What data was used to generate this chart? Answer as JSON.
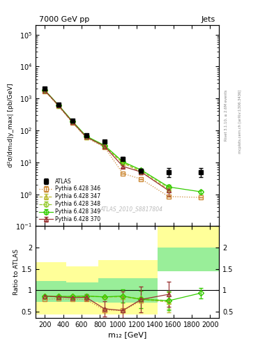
{
  "title_left": "7000 GeV pp",
  "title_right": "Jets",
  "watermark": "ATLAS_2010_S8817804",
  "right_label": "Rivet 3.1.10, ≥ 2.6M events",
  "right_label2": "mcplots.cern.ch [arXiv:1306.3436]",
  "ylabel_main": "d²σ/dm₁d|y_max| [pb/GeV]",
  "ylabel_ratio": "Ratio to ATLAS",
  "xlabel": "m₁₂ [GeV]",
  "x_centers": [
    200,
    350,
    500,
    650,
    850,
    1050,
    1250,
    1550,
    1900
  ],
  "atlas_y": [
    2000,
    650,
    200,
    70,
    45,
    13,
    5.5,
    5.0,
    5.0
  ],
  "atlas_yerr": [
    150,
    50,
    20,
    6,
    4,
    1.5,
    0.8,
    1.5,
    1.5
  ],
  "p346_y": [
    1700,
    580,
    175,
    60,
    30,
    4.5,
    3.0,
    0.85,
    0.8
  ],
  "p346_yerr": [
    0,
    0,
    0,
    0,
    0,
    0,
    0,
    0,
    0
  ],
  "p347_y": [
    1750,
    590,
    180,
    62,
    31,
    9.5,
    5.0,
    1.4,
    null
  ],
  "p347_yerr": [
    0,
    0,
    0,
    0,
    0,
    0,
    0,
    0,
    0
  ],
  "p348_y": [
    1800,
    610,
    190,
    65,
    33,
    10.0,
    5.5,
    1.6,
    null
  ],
  "p348_yerr": [
    0,
    0,
    0,
    0,
    0,
    0,
    0,
    0.3,
    0
  ],
  "p349_y": [
    1820,
    620,
    195,
    67,
    34,
    10.5,
    5.8,
    1.7,
    1.2
  ],
  "p349_yerr": [
    0,
    0,
    0,
    0,
    0,
    0,
    0.3,
    0.3,
    0.15
  ],
  "p370_y": [
    1780,
    600,
    185,
    63,
    32,
    7.5,
    5.0,
    1.3,
    null
  ],
  "p370_yerr": [
    0,
    0,
    0,
    0,
    0,
    1.0,
    0.8,
    0.4,
    0
  ],
  "ratio_346": [
    0.78,
    0.8,
    0.78,
    0.78,
    0.53,
    0.52,
    0.75,
    null,
    null
  ],
  "ratio_347": [
    0.85,
    0.84,
    0.84,
    0.85,
    0.84,
    0.84,
    0.78,
    0.72,
    null
  ],
  "ratio_348": [
    0.86,
    0.85,
    0.85,
    0.86,
    0.84,
    0.85,
    0.8,
    0.75,
    null
  ],
  "ratio_349": [
    0.86,
    0.85,
    0.85,
    0.86,
    0.84,
    0.86,
    0.78,
    0.75,
    0.93
  ],
  "ratio_370": [
    0.86,
    0.84,
    0.82,
    0.83,
    0.56,
    0.52,
    0.78,
    0.9,
    null
  ],
  "ratio_346_err": [
    0,
    0,
    0,
    0,
    0,
    0,
    0,
    0,
    0
  ],
  "ratio_347_err": [
    0,
    0,
    0,
    0,
    0,
    0,
    0,
    0.25,
    0
  ],
  "ratio_348_err": [
    0,
    0,
    0,
    0,
    0,
    0,
    0,
    0.2,
    0
  ],
  "ratio_349_err": [
    0,
    0,
    0,
    0,
    0,
    0.15,
    0.2,
    0.22,
    0.12
  ],
  "ratio_370_err": [
    0,
    0,
    0.05,
    0.08,
    0.18,
    0.45,
    0.3,
    0.3,
    0
  ],
  "band_x_edges": [
    100,
    280,
    430,
    580,
    780,
    980,
    1180,
    1430,
    1730,
    2100
  ],
  "band_yellow_lo": [
    0.42,
    0.42,
    0.42,
    0.42,
    0.42,
    0.42,
    0.42,
    1.75,
    1.75
  ],
  "band_yellow_hi": [
    1.65,
    1.65,
    1.55,
    1.55,
    1.7,
    1.7,
    1.7,
    2.5,
    2.5
  ],
  "band_green_lo": [
    0.72,
    0.72,
    0.72,
    0.72,
    0.7,
    0.7,
    0.7,
    1.45,
    1.45
  ],
  "band_green_hi": [
    1.22,
    1.22,
    1.18,
    1.18,
    1.28,
    1.28,
    1.28,
    2.0,
    2.0
  ],
  "color_atlas": "#000000",
  "color_346": "#cc8833",
  "color_347": "#bbbb33",
  "color_348": "#99cc33",
  "color_349": "#33cc00",
  "color_370": "#993333",
  "color_yellow": "#ffff99",
  "color_green": "#99ee99",
  "xlim": [
    100,
    2100
  ],
  "xticks": [
    200,
    400,
    600,
    800,
    1000,
    1200,
    1400,
    1600,
    1800,
    2000
  ],
  "xticklabels": [
    "200",
    "400",
    "600",
    "800",
    "1000",
    "1200",
    "1400",
    "1600",
    "1800",
    "2000"
  ],
  "ylim_main": [
    0.1,
    200000
  ],
  "ylim_ratio": [
    0.35,
    2.5
  ],
  "ratio_yticks": [
    0.5,
    1.0,
    1.5,
    2.0
  ],
  "ratio_yticklabels": [
    "0.5",
    "1",
    "1.5",
    "2"
  ]
}
